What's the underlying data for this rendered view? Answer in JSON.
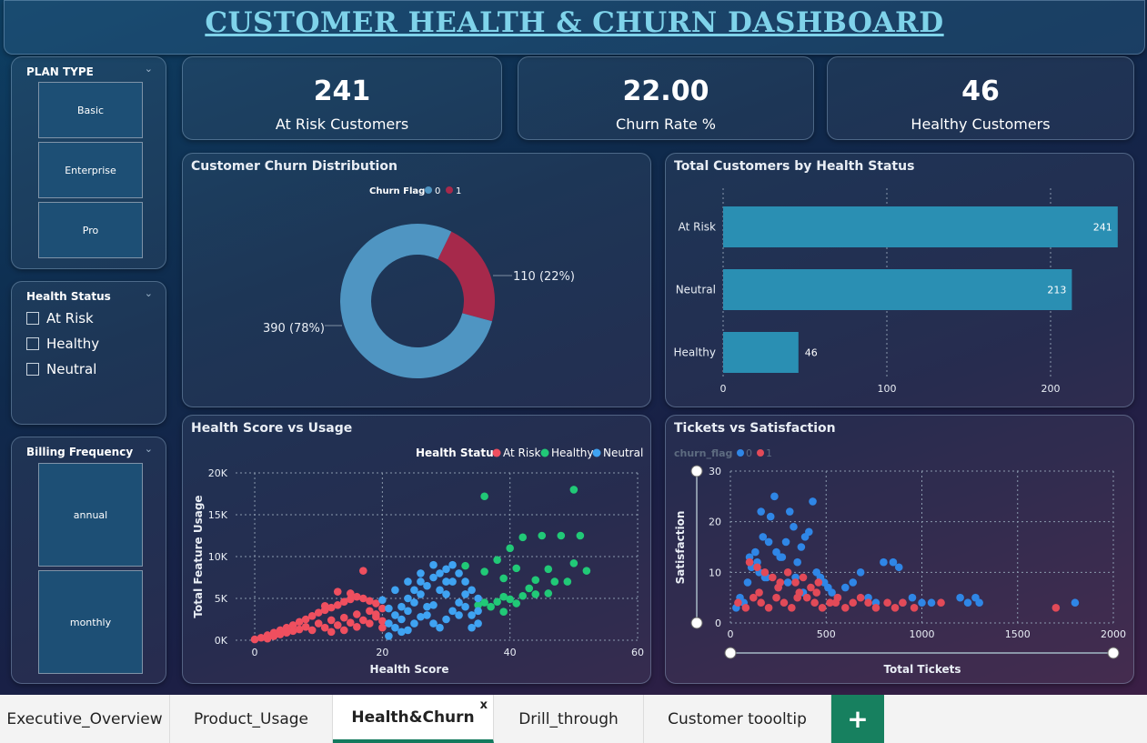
{
  "dashboard": {
    "title": "CUSTOMER HEALTH & CHURN DASHBOARD"
  },
  "slicers": {
    "plan_type": {
      "title": "PLAN TYPE",
      "options": [
        "Basic",
        "Enterprise",
        "Pro"
      ]
    },
    "health_status": {
      "title": "Health Status",
      "options": [
        "At Risk",
        "Healthy",
        "Neutral"
      ]
    },
    "billing_frequency": {
      "title": "Billing Frequency",
      "options": [
        "annual",
        "monthly"
      ]
    }
  },
  "kpis": [
    {
      "value": "241",
      "label": "At Risk Customers"
    },
    {
      "value": "22.00",
      "label": "Churn Rate %"
    },
    {
      "value": "46",
      "label": "Healthy Customers"
    }
  ],
  "colors": {
    "churn0": "#4f95c2",
    "churn1": "#a6294b",
    "bar": "#2a8fb3",
    "at_risk": "#ef4f5f",
    "healthy": "#21c977",
    "neutral": "#3fa3f2",
    "scatter0": "#2f86e6",
    "scatter1": "#e24a58"
  },
  "chart_data": [
    {
      "type": "pie",
      "title": "Customer Churn Distribution",
      "legend_title": "Churn Flag",
      "legend_placement": "top",
      "categories": [
        "0",
        "1"
      ],
      "values": [
        390,
        110
      ],
      "data_labels": [
        "390 (78%)",
        "110 (22%)"
      ]
    },
    {
      "type": "bar",
      "orientation": "horizontal",
      "title": "Total Customers by Health Status",
      "categories": [
        "At Risk",
        "Neutral",
        "Healthy"
      ],
      "values": [
        241,
        213,
        46
      ],
      "xlim": [
        0,
        240
      ],
      "xticks": [
        0,
        100,
        200
      ],
      "grid": true
    },
    {
      "type": "scatter",
      "title": "Health Score vs Usage",
      "xlabel": "Health Score",
      "ylabel": "Total Feature Usage",
      "legend_title": "Health Status",
      "legend_placement": "top-right",
      "xlim": [
        -3,
        60
      ],
      "ylim": [
        0,
        20000
      ],
      "xticks": [
        "0",
        "20",
        "40",
        "60"
      ],
      "yticks": [
        "0K",
        "5K",
        "10K",
        "15K",
        "20K"
      ],
      "grid": true,
      "series": [
        {
          "name": "At Risk",
          "points": [
            [
              0,
              100
            ],
            [
              1,
              300
            ],
            [
              2,
              600
            ],
            [
              3,
              900
            ],
            [
              4,
              1200
            ],
            [
              5,
              1500
            ],
            [
              6,
              1800
            ],
            [
              7,
              2200
            ],
            [
              8,
              2500
            ],
            [
              9,
              2900
            ],
            [
              10,
              3300
            ],
            [
              11,
              3600
            ],
            [
              12,
              3900
            ],
            [
              13,
              4200
            ],
            [
              14,
              4600
            ],
            [
              15,
              4900
            ],
            [
              16,
              5200
            ],
            [
              17,
              5000
            ],
            [
              18,
              4700
            ],
            [
              19,
              4400
            ],
            [
              2,
              200
            ],
            [
              4,
              700
            ],
            [
              6,
              1100
            ],
            [
              8,
              1600
            ],
            [
              10,
              2000
            ],
            [
              12,
              2400
            ],
            [
              14,
              2700
            ],
            [
              16,
              3100
            ],
            [
              18,
              3500
            ],
            [
              20,
              3800
            ],
            [
              9,
              1200
            ],
            [
              11,
              1500
            ],
            [
              13,
              1800
            ],
            [
              15,
              2100
            ],
            [
              17,
              2400
            ],
            [
              19,
              2800
            ],
            [
              14,
              1200
            ],
            [
              16,
              1600
            ],
            [
              18,
              2000
            ],
            [
              20,
              2300
            ],
            [
              5,
              900
            ],
            [
              7,
              1300
            ],
            [
              3,
              500
            ],
            [
              17,
              8300
            ],
            [
              15,
              5600
            ],
            [
              13,
              5800
            ],
            [
              11,
              4100
            ],
            [
              19,
              3100
            ],
            [
              20,
              1500
            ],
            [
              12,
              1000
            ]
          ]
        },
        {
          "name": "Healthy",
          "points": [
            [
              36,
              17200
            ],
            [
              50,
              18000
            ],
            [
              48,
              12500
            ],
            [
              42,
              12300
            ],
            [
              45,
              12500
            ],
            [
              40,
              11000
            ],
            [
              51,
              12500
            ],
            [
              50,
              9200
            ],
            [
              52,
              8300
            ],
            [
              46,
              8500
            ],
            [
              49,
              7000
            ],
            [
              44,
              7200
            ],
            [
              47,
              7000
            ],
            [
              38,
              9600
            ],
            [
              36,
              8200
            ],
            [
              41,
              8600
            ],
            [
              33,
              8900
            ],
            [
              39,
              7400
            ],
            [
              43,
              6200
            ],
            [
              46,
              5600
            ],
            [
              39,
              5200
            ],
            [
              40,
              4900
            ],
            [
              36,
              4500
            ],
            [
              38,
              4600
            ],
            [
              41,
              4400
            ],
            [
              42,
              5300
            ],
            [
              44,
              5500
            ],
            [
              37,
              4000
            ],
            [
              39,
              3400
            ],
            [
              35,
              4200
            ]
          ]
        },
        {
          "name": "Neutral",
          "points": [
            [
              21,
              500
            ],
            [
              22,
              1500
            ],
            [
              23,
              2500
            ],
            [
              24,
              3500
            ],
            [
              25,
              4500
            ],
            [
              26,
              5500
            ],
            [
              27,
              6500
            ],
            [
              28,
              7500
            ],
            [
              29,
              8000
            ],
            [
              30,
              8500
            ],
            [
              31,
              9000
            ],
            [
              32,
              8000
            ],
            [
              33,
              7000
            ],
            [
              34,
              6000
            ],
            [
              35,
              5000
            ],
            [
              22,
              3000
            ],
            [
              23,
              4000
            ],
            [
              24,
              5000
            ],
            [
              25,
              6000
            ],
            [
              26,
              7000
            ],
            [
              27,
              3000
            ],
            [
              28,
              2000
            ],
            [
              29,
              1500
            ],
            [
              30,
              2500
            ],
            [
              31,
              3500
            ],
            [
              32,
              4500
            ],
            [
              33,
              5500
            ],
            [
              34,
              3000
            ],
            [
              35,
              2000
            ],
            [
              21,
              2000
            ],
            [
              22,
              6000
            ],
            [
              24,
              7000
            ],
            [
              26,
              8000
            ],
            [
              28,
              9000
            ],
            [
              30,
              5500
            ],
            [
              32,
              3000
            ],
            [
              34,
              1500
            ],
            [
              23,
              1000
            ],
            [
              25,
              2000
            ],
            [
              27,
              4000
            ],
            [
              29,
              6000
            ],
            [
              31,
              7000
            ],
            [
              33,
              4000
            ],
            [
              35,
              3500
            ],
            [
              20,
              4800
            ],
            [
              21,
              3800
            ],
            [
              24,
              1200
            ],
            [
              26,
              2800
            ],
            [
              28,
              4200
            ],
            [
              30,
              7000
            ]
          ]
        }
      ]
    },
    {
      "type": "scatter",
      "title": "Tickets vs Satisfaction",
      "xlabel": "Total Tickets",
      "ylabel": "Satisfaction",
      "legend_title": "churn_flag",
      "legend_placement": "top-left",
      "xlim": [
        0,
        2000
      ],
      "ylim": [
        0,
        30
      ],
      "xticks": [
        "0",
        "500",
        "1000",
        "1500",
        "2000"
      ],
      "yticks": [
        "0",
        "10",
        "20",
        "30"
      ],
      "grid": true,
      "series": [
        {
          "name": "0",
          "points": [
            [
              30,
              3
            ],
            [
              50,
              5
            ],
            [
              70,
              4
            ],
            [
              90,
              8
            ],
            [
              110,
              11
            ],
            [
              130,
              14
            ],
            [
              150,
              10
            ],
            [
              170,
              17
            ],
            [
              190,
              9
            ],
            [
              210,
              21
            ],
            [
              230,
              25
            ],
            [
              250,
              7
            ],
            [
              270,
              13
            ],
            [
              290,
              16
            ],
            [
              310,
              22
            ],
            [
              330,
              19
            ],
            [
              350,
              12
            ],
            [
              370,
              15
            ],
            [
              390,
              17
            ],
            [
              410,
              18
            ],
            [
              430,
              24
            ],
            [
              450,
              10
            ],
            [
              470,
              9
            ],
            [
              490,
              8
            ],
            [
              510,
              7
            ],
            [
              530,
              6
            ],
            [
              560,
              5
            ],
            [
              600,
              7
            ],
            [
              640,
              8
            ],
            [
              680,
              10
            ],
            [
              720,
              5
            ],
            [
              760,
              4
            ],
            [
              800,
              12
            ],
            [
              850,
              12
            ],
            [
              880,
              11
            ],
            [
              900,
              4
            ],
            [
              950,
              5
            ],
            [
              1000,
              4
            ],
            [
              1050,
              4
            ],
            [
              1200,
              5
            ],
            [
              1240,
              4
            ],
            [
              1280,
              5
            ],
            [
              1300,
              4
            ],
            [
              1800,
              4
            ],
            [
              100,
              13
            ],
            [
              140,
              12
            ],
            [
              180,
              9
            ],
            [
              200,
              16
            ],
            [
              260,
              13
            ],
            [
              300,
              8
            ],
            [
              340,
              9
            ],
            [
              380,
              6
            ],
            [
              160,
              22
            ],
            [
              240,
              14
            ]
          ]
        },
        {
          "name": "1",
          "points": [
            [
              40,
              4
            ],
            [
              80,
              3
            ],
            [
              120,
              5
            ],
            [
              160,
              4
            ],
            [
              200,
              3
            ],
            [
              240,
              5
            ],
            [
              280,
              4
            ],
            [
              320,
              3
            ],
            [
              360,
              6
            ],
            [
              400,
              5
            ],
            [
              440,
              4
            ],
            [
              480,
              3
            ],
            [
              520,
              4
            ],
            [
              560,
              5
            ],
            [
              600,
              3
            ],
            [
              640,
              4
            ],
            [
              680,
              5
            ],
            [
              720,
              4
            ],
            [
              760,
              3
            ],
            [
              820,
              4
            ],
            [
              860,
              3
            ],
            [
              900,
              4
            ],
            [
              960,
              3
            ],
            [
              1100,
              4
            ],
            [
              1700,
              3
            ],
            [
              100,
              12
            ],
            [
              140,
              11
            ],
            [
              180,
              10
            ],
            [
              220,
              9
            ],
            [
              260,
              8
            ],
            [
              300,
              10
            ],
            [
              340,
              8
            ],
            [
              380,
              9
            ],
            [
              420,
              7
            ],
            [
              460,
              8
            ],
            [
              150,
              6
            ],
            [
              250,
              7
            ],
            [
              350,
              5
            ],
            [
              450,
              6
            ],
            [
              550,
              4
            ]
          ]
        }
      ]
    }
  ],
  "tabs": [
    {
      "label": "Executive_Overview"
    },
    {
      "label": "Product_Usage"
    },
    {
      "label": "Health&Churn",
      "close": "x"
    },
    {
      "label": "Drill_through"
    },
    {
      "label": "Customer toooltip"
    }
  ],
  "add_tab_label": "+"
}
